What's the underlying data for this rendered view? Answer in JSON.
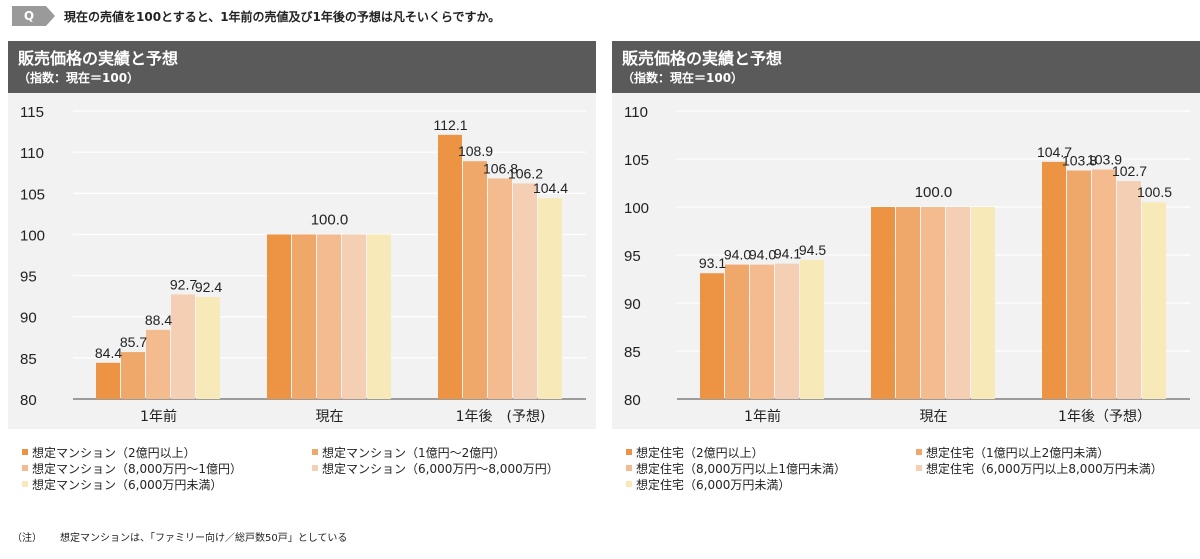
{
  "q_label": "Q",
  "question": "現在の売値を100とすると、1年前の売値及び1年後の予想は凡そいくらですか。",
  "note_label": "（注）",
  "note_text": "想定マンションは、「ファミリー向け／総戸数50戸」としている",
  "colors": [
    "#ec9444",
    "#f0a86a",
    "#f3bb8e",
    "#f5cfb4",
    "#f8eab8"
  ],
  "chart_data": [
    {
      "type": "bar",
      "title": "販売価格の実績と予想",
      "subtitle": "（指数：現在＝100）",
      "categories": [
        "1年前",
        "現在",
        "1年後　(予想)"
      ],
      "ylim": [
        80,
        115
      ],
      "yticks": [
        80,
        85,
        90,
        95,
        100,
        105,
        110,
        115
      ],
      "grid": true,
      "legend_position": "bottom",
      "series": [
        {
          "name": "想定マンション（2億円以上）",
          "values": [
            84.4,
            100.0,
            112.1
          ]
        },
        {
          "name": "想定マンション（1億円～2億円）",
          "values": [
            85.7,
            100.0,
            108.9
          ]
        },
        {
          "name": "想定マンション（8,000万円～1億円）",
          "values": [
            88.4,
            100.0,
            106.8
          ]
        },
        {
          "name": "想定マンション（6,000万円～8,000万円）",
          "values": [
            92.7,
            100.0,
            106.2
          ]
        },
        {
          "name": "想定マンション（6,000万円未満）",
          "values": [
            92.4,
            100.0,
            104.4
          ]
        }
      ],
      "data_labels": [
        [
          "84.4",
          "85.7",
          "88.4",
          "92.7",
          "92.4"
        ],
        [
          "100.0"
        ],
        [
          "112.1",
          "108.9",
          "106.8",
          "106.2",
          "104.4"
        ]
      ]
    },
    {
      "type": "bar",
      "title": "販売価格の実績と予想",
      "subtitle": "（指数：現在＝100）",
      "categories": [
        "1年前",
        "現在",
        "1年後（予想）"
      ],
      "ylim": [
        80,
        110
      ],
      "yticks": [
        80,
        85,
        90,
        95,
        100,
        105,
        110
      ],
      "grid": true,
      "legend_position": "bottom",
      "series": [
        {
          "name": "想定住宅（2億円以上）",
          "values": [
            93.1,
            100.0,
            104.7
          ]
        },
        {
          "name": "想定住宅（1億円以上2億円未満）",
          "values": [
            94.0,
            100.0,
            103.8
          ]
        },
        {
          "name": "想定住宅（8,000万円以上1億円未満）",
          "values": [
            94.0,
            100.0,
            103.9
          ]
        },
        {
          "name": "想定住宅（6,000万円以上8,000万円未満）",
          "values": [
            94.1,
            100.0,
            102.7
          ]
        },
        {
          "name": "想定住宅（6,000万円未満）",
          "values": [
            94.5,
            100.0,
            100.5
          ]
        }
      ],
      "data_labels": [
        [
          "93.1",
          "94.0",
          "94.0",
          "94.1",
          "94.5"
        ],
        [
          "100.0"
        ],
        [
          "104.7",
          "103.8",
          "103.9",
          "102.7",
          "100.5"
        ]
      ]
    }
  ]
}
